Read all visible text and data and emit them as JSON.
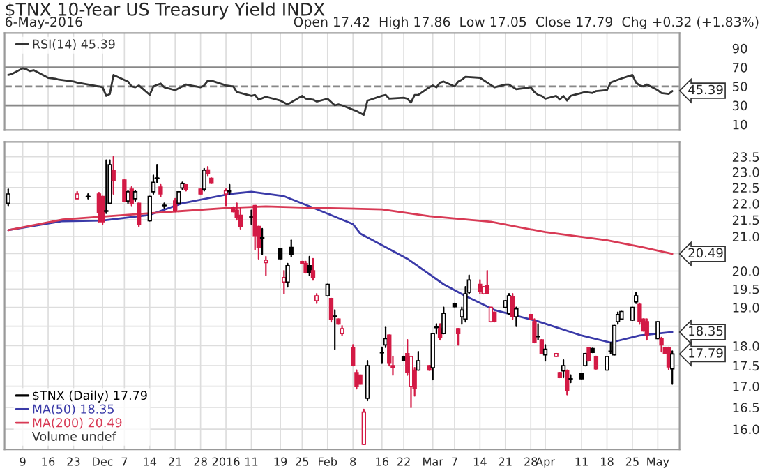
{
  "chart_data": [
    {
      "type": "line",
      "title": "$TNX 10-Year US Treasury Yield INDX",
      "subtitle": "6-May-2016",
      "annotations": [
        "Open 17.42  High 17.86  Low 17.05  Close 17.79  Chg +0.32 (+1.83%)",
        {
          "text": "45.39",
          "x": "2016-05-06",
          "y": 45.39
        }
      ],
      "series": [
        {
          "name": "RSI(14) 45.39",
          "color": "#333333",
          "x": [
            "2015-11-05",
            "2015-11-06",
            "2015-11-09",
            "2015-11-10",
            "2015-11-11",
            "2015-11-12",
            "2015-11-16",
            "2015-11-18",
            "2015-11-19",
            "2015-11-23",
            "2015-11-24",
            "2015-11-27",
            "2015-11-30",
            "2015-12-01",
            "2015-12-02",
            "2015-12-03",
            "2015-12-04",
            "2015-12-08",
            "2015-12-09",
            "2015-12-10",
            "2015-12-11",
            "2015-12-14",
            "2015-12-15",
            "2015-12-17",
            "2015-12-18",
            "2015-12-21",
            "2015-12-22",
            "2015-12-24",
            "2015-12-28",
            "2015-12-29",
            "2015-12-30",
            "2015-12-31",
            "2016-01-04",
            "2016-01-06",
            "2016-01-07",
            "2016-01-11",
            "2016-01-12",
            "2016-01-13",
            "2016-01-15",
            "2016-01-19",
            "2016-01-21",
            "2016-01-25",
            "2016-01-26",
            "2016-01-28",
            "2016-01-29",
            "2016-02-01",
            "2016-02-03",
            "2016-02-04",
            "2016-02-05",
            "2016-02-09",
            "2016-02-10",
            "2016-02-11",
            "2016-02-12",
            "2016-02-16",
            "2016-02-17",
            "2016-02-18",
            "2016-02-22",
            "2016-02-23",
            "2016-02-24",
            "2016-02-25",
            "2016-02-26",
            "2016-02-29",
            "2016-03-01",
            "2016-03-02",
            "2016-03-03",
            "2016-03-04",
            "2016-03-07",
            "2016-03-08",
            "2016-03-09",
            "2016-03-10",
            "2016-03-14",
            "2016-03-16",
            "2016-03-18",
            "2016-03-21",
            "2016-03-22",
            "2016-03-24",
            "2016-03-28",
            "2016-03-29",
            "2016-03-30",
            "2016-03-31",
            "2016-04-01",
            "2016-04-04",
            "2016-04-05",
            "2016-04-06",
            "2016-04-07",
            "2016-04-08",
            "2016-04-12",
            "2016-04-14",
            "2016-04-15",
            "2016-04-18",
            "2016-04-19",
            "2016-04-21",
            "2016-04-25",
            "2016-04-26",
            "2016-04-27",
            "2016-04-28",
            "2016-04-29",
            "2016-05-02",
            "2016-05-03",
            "2016-05-05",
            "2016-05-06"
          ],
          "values": [
            62,
            63,
            69,
            68,
            66,
            67,
            59,
            58,
            57,
            55,
            54,
            52,
            50,
            49,
            40,
            42,
            62,
            55,
            50,
            49,
            51,
            41,
            50,
            53,
            49,
            46,
            48,
            52,
            49,
            51,
            56,
            56,
            51,
            50,
            44,
            40,
            41,
            36,
            39,
            35,
            31,
            40,
            37,
            36,
            34,
            37,
            30,
            31,
            30,
            24,
            22,
            20,
            35,
            40,
            41,
            37,
            38,
            37,
            33,
            41,
            41,
            49,
            51,
            49,
            54,
            55,
            50,
            55,
            57,
            60,
            59,
            54,
            49,
            52,
            52,
            47,
            49,
            44,
            41,
            40,
            37,
            40,
            36,
            40,
            35,
            40,
            44,
            43,
            45,
            46,
            54,
            57,
            62,
            54,
            51,
            50,
            52,
            46,
            43,
            42,
            45
          ]
        }
      ],
      "ylim": [
        4,
        106
      ],
      "yticks": [
        10,
        30,
        50,
        70,
        90
      ],
      "xlim": [
        "2015-11-04",
        "2016-05-08"
      ],
      "xticks": [
        {
          "value": "2015-11-09",
          "label": null
        },
        {
          "value": "2015-11-16",
          "label": null
        },
        {
          "value": "2015-11-23",
          "label": null
        },
        {
          "value": "2015-12-01",
          "label": null
        },
        {
          "value": "2015-12-07",
          "label": null
        },
        {
          "value": "2015-12-14",
          "label": null
        },
        {
          "value": "2015-12-21",
          "label": null
        },
        {
          "value": "2015-12-28",
          "label": null
        },
        {
          "value": "2016-01-04",
          "label": null
        },
        {
          "value": "2016-01-11",
          "label": null
        },
        {
          "value": "2016-01-19",
          "label": null
        },
        {
          "value": "2016-01-25",
          "label": null
        },
        {
          "value": "2016-02-01",
          "label": null
        },
        {
          "value": "2016-02-08",
          "label": null
        },
        {
          "value": "2016-02-16",
          "label": null
        },
        {
          "value": "2016-02-22",
          "label": null
        },
        {
          "value": "2016-03-01",
          "label": null
        },
        {
          "value": "2016-03-07",
          "label": null
        },
        {
          "value": "2016-03-14",
          "label": null
        },
        {
          "value": "2016-03-21",
          "label": null
        },
        {
          "value": "2016-03-28",
          "label": null
        },
        {
          "value": "2016-04-01",
          "label": null
        },
        {
          "value": "2016-04-11",
          "label": null
        },
        {
          "value": "2016-04-18",
          "label": null
        },
        {
          "value": "2016-04-25",
          "label": null
        },
        {
          "value": "2016-05-02",
          "label": null
        }
      ],
      "tick_labels": "y",
      "ref_lines": [
        {
          "axis": "y",
          "value": 70,
          "color": "#888888",
          "line_style": "solid"
        },
        {
          "axis": "y",
          "value": 30,
          "color": "#888888",
          "line_style": "solid"
        },
        {
          "axis": "y",
          "value": 50,
          "color": "#888888",
          "line_style": "dashed"
        }
      ],
      "grid": "x",
      "legend": "top left"
    },
    {
      "type": "candlestick",
      "annotations": [
        "Volume undef",
        {
          "text": "20.49",
          "x": "2016-05-06",
          "y": 20.49
        },
        {
          "text": "18.35",
          "x": "2016-05-06",
          "y": 18.35
        },
        {
          "text": "17.79",
          "x": "2016-05-06",
          "y": 17.79
        }
      ],
      "series": [
        {
          "type": "candlestick",
          "name": "$TNX (Daily) 17.79",
          "x": [
            "2015-11-05",
            "2015-11-24",
            "2015-11-27",
            "2015-11-30",
            "2015-12-01",
            "2015-12-02",
            "2015-12-03",
            "2015-12-04",
            "2015-12-07",
            "2015-12-08",
            "2015-12-09",
            "2015-12-10",
            "2015-12-11",
            "2015-12-14",
            "2015-12-15",
            "2015-12-16",
            "2015-12-17",
            "2015-12-18",
            "2015-12-21",
            "2015-12-22",
            "2015-12-23",
            "2015-12-24",
            "2015-12-28",
            "2015-12-29",
            "2015-12-30",
            "2015-12-31",
            "2016-01-04",
            "2016-01-05",
            "2016-01-06",
            "2016-01-07",
            "2016-01-08",
            "2016-01-11",
            "2016-01-12",
            "2016-01-13",
            "2016-01-14",
            "2016-01-15",
            "2016-01-19",
            "2016-01-20",
            "2016-01-21",
            "2016-01-22",
            "2016-01-25",
            "2016-01-26",
            "2016-01-27",
            "2016-01-28",
            "2016-01-29",
            "2016-02-01",
            "2016-02-02",
            "2016-02-03",
            "2016-02-04",
            "2016-02-05",
            "2016-02-08",
            "2016-02-09",
            "2016-02-10",
            "2016-02-11",
            "2016-02-12",
            "2016-02-16",
            "2016-02-17",
            "2016-02-18",
            "2016-02-19",
            "2016-02-22",
            "2016-02-23",
            "2016-02-24",
            "2016-02-25",
            "2016-02-26",
            "2016-02-29",
            "2016-03-01",
            "2016-03-02",
            "2016-03-03",
            "2016-03-04",
            "2016-03-07",
            "2016-03-08",
            "2016-03-09",
            "2016-03-10",
            "2016-03-11",
            "2016-03-14",
            "2016-03-15",
            "2016-03-16",
            "2016-03-17",
            "2016-03-18",
            "2016-03-21",
            "2016-03-22",
            "2016-03-23",
            "2016-03-24",
            "2016-03-28",
            "2016-03-29",
            "2016-03-30",
            "2016-03-31",
            "2016-04-01",
            "2016-04-04",
            "2016-04-05",
            "2016-04-06",
            "2016-04-07",
            "2016-04-08",
            "2016-04-11",
            "2016-04-12",
            "2016-04-13",
            "2016-04-14",
            "2016-04-15",
            "2016-04-18",
            "2016-04-19",
            "2016-04-20",
            "2016-04-21",
            "2016-04-22",
            "2016-04-25",
            "2016-04-26",
            "2016-04-27",
            "2016-04-28",
            "2016-04-29",
            "2016-05-02",
            "2016-05-03",
            "2016-05-04",
            "2016-05-05",
            "2016-05-06"
          ],
          "ohlc": [
            [
              22.01,
              22.45,
              21.94,
              22.3
            ],
            [
              22.15,
              22.37,
              22.15,
              22.3
            ],
            [
              22.22,
              22.3,
              22.15,
              22.22
            ],
            [
              22.3,
              22.34,
              21.44,
              21.73
            ],
            [
              22.22,
              22.22,
              21.37,
              21.44
            ],
            [
              21.76,
              23.39,
              21.7,
              21.78
            ],
            [
              22.01,
              23.39,
              22.01,
              23.24
            ],
            [
              23.04,
              23.5,
              22.3,
              22.74
            ],
            [
              22.74,
              22.74,
              22.08,
              22.08
            ],
            [
              22.08,
              22.4,
              22.01,
              22.37
            ],
            [
              22.45,
              22.52,
              21.94,
              22.01
            ],
            [
              22.15,
              22.4,
              22.08,
              22.37
            ],
            [
              22.01,
              22.01,
              21.3,
              21.37
            ],
            [
              21.47,
              22.22,
              21.47,
              22.22
            ],
            [
              22.37,
              22.89,
              22.3,
              22.67
            ],
            [
              22.8,
              23.24,
              22.67,
              22.8
            ],
            [
              22.52,
              22.59,
              22.22,
              22.3
            ],
            [
              21.94,
              22.01,
              21.86,
              21.94
            ],
            [
              22.08,
              22.15,
              21.75,
              21.79
            ],
            [
              22.01,
              22.37,
              22.01,
              22.37
            ],
            [
              22.49,
              22.67,
              22.45,
              22.63
            ],
            [
              22.59,
              22.59,
              22.4,
              22.45
            ],
            [
              22.45,
              22.45,
              22.3,
              22.3
            ],
            [
              22.45,
              23.11,
              22.4,
              23.06
            ],
            [
              23.07,
              23.17,
              22.89,
              22.96
            ],
            [
              22.8,
              22.8,
              22.64,
              22.64
            ],
            [
              22.3,
              22.45,
              21.94,
              22.4
            ],
            [
              22.37,
              22.59,
              22.3,
              22.4
            ],
            [
              21.89,
              21.89,
              21.75,
              21.75
            ],
            [
              21.79,
              22.01,
              21.5,
              21.58
            ],
            [
              21.64,
              21.86,
              21.23,
              21.3
            ],
            [
              21.58,
              21.79,
              21.37,
              21.6
            ],
            [
              21.94,
              21.94,
              20.61,
              21.03
            ],
            [
              21.3,
              21.3,
              20.35,
              20.68
            ],
            [
              20.95,
              21.23,
              20.48,
              20.97
            ],
            [
              20.24,
              20.41,
              19.88,
              20.31
            ],
            [
              20.64,
              20.64,
              20.35,
              20.35
            ],
            [
              19.69,
              20.01,
              19.37,
              19.82
            ],
            [
              19.69,
              20.21,
              19.56,
              20.15
            ],
            [
              20.68,
              20.89,
              20.41,
              20.48
            ],
            [
              20.27,
              20.27,
              20.21,
              20.21
            ],
            [
              20.21,
              20.27,
              19.95,
              19.95
            ],
            [
              20.15,
              20.41,
              19.88,
              19.95
            ],
            [
              20.01,
              20.35,
              19.75,
              19.82
            ],
            [
              19.18,
              19.37,
              19.11,
              19.31
            ],
            [
              19.31,
              19.63,
              19.31,
              19.63
            ],
            [
              19.24,
              19.24,
              18.62,
              18.69
            ],
            [
              18.75,
              18.93,
              17.91,
              18.77
            ],
            [
              18.69,
              18.69,
              18.56,
              18.56
            ],
            [
              18.31,
              18.51,
              18.27,
              18.44
            ],
            [
              17.96,
              18.02,
              17.5,
              17.5
            ],
            [
              17.33,
              17.39,
              16.94,
              16.99
            ],
            [
              17.27,
              17.27,
              17.05,
              17.05
            ],
            [
              15.66,
              16.45,
              15.66,
              16.39
            ],
            [
              16.71,
              17.62,
              16.66,
              17.5
            ],
            [
              17.83,
              17.96,
              17.56,
              17.82
            ],
            [
              18.02,
              18.47,
              17.96,
              18.18
            ],
            [
              18.27,
              18.27,
              17.5,
              17.56
            ],
            [
              17.5,
              17.73,
              17.27,
              17.45
            ],
            [
              17.73,
              17.73,
              17.64,
              17.64
            ],
            [
              17.8,
              18.15,
              17.27,
              17.33
            ],
            [
              16.99,
              17.73,
              16.5,
              17.73
            ],
            [
              17.39,
              17.45,
              16.77,
              16.94
            ],
            [
              17.39,
              17.85,
              17.39,
              17.62
            ],
            [
              17.5,
              17.5,
              17.39,
              17.39
            ],
            [
              17.45,
              18.31,
              17.16,
              18.31
            ],
            [
              18.47,
              18.56,
              18.31,
              18.47
            ],
            [
              18.44,
              18.56,
              18.15,
              18.21
            ],
            [
              18.31,
              19.0,
              18.31,
              18.84
            ],
            [
              19.11,
              19.11,
              19.02,
              19.02
            ],
            [
              18.44,
              18.44,
              18.02,
              18.31
            ],
            [
              18.75,
              19.0,
              18.56,
              18.93
            ],
            [
              18.69,
              19.56,
              18.62,
              19.37
            ],
            [
              19.41,
              19.88,
              19.37,
              19.75
            ],
            [
              19.63,
              19.75,
              19.37,
              19.43
            ],
            [
              19.37,
              19.56,
              19.37,
              19.56
            ],
            [
              19.6,
              20.01,
              19.37,
              19.37
            ],
            [
              18.62,
              19.0,
              18.62,
              19.0
            ],
            [
              18.87,
              18.87,
              18.62,
              18.62
            ],
            [
              19.0,
              19.18,
              19.0,
              19.18
            ],
            [
              18.84,
              19.37,
              18.81,
              19.31
            ],
            [
              19.28,
              19.37,
              18.69,
              18.75
            ],
            [
              18.75,
              19.0,
              18.5,
              18.96
            ],
            [
              18.81,
              18.81,
              18.69,
              18.69
            ],
            [
              18.62,
              18.69,
              18.08,
              18.08
            ],
            [
              18.23,
              18.56,
              18.15,
              18.24
            ],
            [
              18.15,
              18.15,
              17.8,
              17.8
            ],
            [
              17.77,
              18.02,
              17.62,
              17.91
            ],
            [
              17.73,
              17.8,
              17.73,
              17.8
            ],
            [
              17.33,
              17.33,
              17.21,
              17.21
            ],
            [
              17.37,
              17.64,
              17.21,
              17.5
            ],
            [
              17.37,
              17.39,
              16.8,
              16.89
            ],
            [
              17.17,
              17.27,
              17.09,
              17.18
            ],
            [
              17.3,
              17.3,
              17.18,
              17.18
            ],
            [
              17.5,
              17.8,
              17.5,
              17.8
            ],
            [
              17.94,
              17.94,
              17.62,
              17.62
            ],
            [
              17.93,
              17.93,
              17.83,
              17.83
            ],
            [
              17.73,
              17.73,
              17.42,
              17.42
            ],
            [
              17.39,
              17.73,
              17.39,
              17.73
            ],
            [
              17.85,
              18.08,
              17.8,
              17.86
            ],
            [
              17.77,
              18.52,
              17.77,
              18.52
            ],
            [
              18.62,
              18.87,
              18.56,
              18.81
            ],
            [
              18.69,
              18.89,
              18.69,
              18.89
            ],
            [
              18.66,
              19.0,
              18.66,
              19.0
            ],
            [
              19.15,
              19.4,
              19.11,
              19.31
            ],
            [
              19.08,
              19.11,
              18.56,
              18.62
            ],
            [
              18.69,
              18.69,
              18.38,
              18.38
            ],
            [
              18.62,
              18.69,
              18.15,
              18.27
            ],
            [
              18.18,
              18.62,
              18.18,
              18.62
            ],
            [
              18.18,
              18.21,
              17.85,
              18.02
            ],
            [
              17.96,
              17.96,
              17.8,
              17.8
            ],
            [
              17.94,
              17.96,
              17.41,
              17.47
            ],
            [
              17.42,
              17.86,
              17.05,
              17.79
            ]
          ],
          "colors": [
            "#000000",
            "#d31a45",
            "#000000",
            "#d31a45",
            "#d31a45",
            "#000000",
            "#000000",
            "#d31a45",
            "#d31a45",
            "#000000",
            "#d31a45",
            "#000000",
            "#d31a45",
            "#000000",
            "#000000",
            "#000000",
            "#d31a45",
            "#000000",
            "#d31a45",
            "#000000",
            "#000000",
            "#d31a45",
            "#d31a45",
            "#000000",
            "#d31a45",
            "#d31a45",
            "#d31a45",
            "#000000",
            "#d31a45",
            "#d31a45",
            "#d31a45",
            "#000000",
            "#d31a45",
            "#d31a45",
            "#000000",
            "#d31a45",
            "#000000",
            "#d31a45",
            "#000000",
            "#000000",
            "#d31a45",
            "#d31a45",
            "#000000",
            "#d31a45",
            "#d31a45",
            "#000000",
            "#d31a45",
            "#000000",
            "#d31a45",
            "#d31a45",
            "#d31a45",
            "#d31a45",
            "#d31a45",
            "#d31a45",
            "#000000",
            "#000000",
            "#000000",
            "#d31a45",
            "#d31a45",
            "#000000",
            "#d31a45",
            "#d31a45",
            "#d31a45",
            "#000000",
            "#d31a45",
            "#000000",
            "#000000",
            "#d31a45",
            "#000000",
            "#000000",
            "#d31a45",
            "#000000",
            "#000000",
            "#000000",
            "#d31a45",
            "#d31a45",
            "#d31a45",
            "#d31a45",
            "#d31a45",
            "#000000",
            "#000000",
            "#d31a45",
            "#000000",
            "#d31a45",
            "#d31a45",
            "#000000",
            "#d31a45",
            "#000000",
            "#d31a45",
            "#d31a45",
            "#000000",
            "#d31a45",
            "#000000",
            "#000000",
            "#000000",
            "#d31a45",
            "#000000",
            "#d31a45",
            "#000000",
            "#000000",
            "#000000",
            "#000000",
            "#000000",
            "#000000",
            "#000000",
            "#d31a45",
            "#d31a45",
            "#d31a45",
            "#000000",
            "#d31a45",
            "#d31a45",
            "#d31a45",
            "#000000"
          ]
        },
        {
          "type": "line",
          "name": "MA(50) 18.35",
          "color": "#3a3aa8",
          "x": [
            "2015-11-05",
            "2015-11-20",
            "2015-12-01",
            "2015-12-14",
            "2015-12-23",
            "2016-01-05",
            "2016-01-11",
            "2016-01-20",
            "2016-01-28",
            "2016-02-08",
            "2016-02-10",
            "2016-02-23",
            "2016-03-04",
            "2016-03-10",
            "2016-03-18",
            "2016-03-30",
            "2016-04-11",
            "2016-04-19",
            "2016-04-27",
            "2016-05-06"
          ],
          "values": [
            21.19,
            21.46,
            21.48,
            21.65,
            22.01,
            22.3,
            22.37,
            22.23,
            21.87,
            21.37,
            21.09,
            20.35,
            19.63,
            19.31,
            18.93,
            18.63,
            18.26,
            18.08,
            18.26,
            18.35
          ]
        },
        {
          "type": "line",
          "name": "MA(200) 20.49",
          "color": "#d83a55",
          "x": [
            "2015-11-05",
            "2015-11-20",
            "2015-12-14",
            "2016-01-05",
            "2016-01-15",
            "2016-01-28",
            "2016-02-16",
            "2016-02-29",
            "2016-03-17",
            "2016-04-01",
            "2016-04-18",
            "2016-04-28",
            "2016-05-06"
          ],
          "values": [
            21.19,
            21.51,
            21.7,
            21.87,
            21.91,
            21.87,
            21.82,
            21.61,
            21.44,
            21.13,
            20.89,
            20.68,
            20.49
          ]
        }
      ],
      "log": true,
      "ylim": [
        15.55,
        24.0
      ],
      "xlim": [
        "2015-11-04",
        "2016-05-08"
      ],
      "yticks": [
        {
          "value": 16,
          "label": "16.0"
        },
        16.5,
        {
          "value": 17,
          "label": "17.0"
        },
        17.5,
        {
          "value": 18,
          "label": "18.0"
        },
        {
          "value": 18.5,
          "label": null
        },
        {
          "value": 19,
          "label": "19.0"
        },
        19.5,
        {
          "value": 20,
          "label": "20.0"
        },
        {
          "value": 20.5,
          "label": null
        },
        {
          "value": 21,
          "label": "21.0"
        },
        21.5,
        {
          "value": 22,
          "label": "22.0"
        },
        22.5,
        {
          "value": 23,
          "label": "23.0"
        },
        23.5
      ],
      "xticks": [
        {
          "value": "2015-11-09",
          "label": "9"
        },
        {
          "value": "2015-11-16",
          "label": "16"
        },
        {
          "value": "2015-11-23",
          "label": "23"
        },
        {
          "value": "2015-12-01",
          "label": "Dec"
        },
        {
          "value": "2015-12-07",
          "label": "7"
        },
        {
          "value": "2015-12-14",
          "label": "14"
        },
        {
          "value": "2015-12-21",
          "label": "21"
        },
        {
          "value": "2015-12-28",
          "label": "28"
        },
        {
          "value": "2016-01-04",
          "label": "2016"
        },
        {
          "value": "2016-01-11",
          "label": "11"
        },
        {
          "value": "2016-01-19",
          "label": "19"
        },
        {
          "value": "2016-01-25",
          "label": "25"
        },
        {
          "value": "2016-02-01",
          "label": "Feb"
        },
        {
          "value": "2016-02-08",
          "label": "8"
        },
        {
          "value": "2016-02-16",
          "label": "16"
        },
        {
          "value": "2016-02-22",
          "label": "22"
        },
        {
          "value": "2016-03-01",
          "label": "Mar"
        },
        {
          "value": "2016-03-07",
          "label": "7"
        },
        {
          "value": "2016-03-14",
          "label": "14"
        },
        {
          "value": "2016-03-21",
          "label": "21"
        },
        {
          "value": "2016-03-28",
          "label": "28"
        },
        {
          "value": "2016-04-01",
          "label": "Apr"
        },
        {
          "value": "2016-04-11",
          "label": "11"
        },
        {
          "value": "2016-04-18",
          "label": "18"
        },
        {
          "value": "2016-04-25",
          "label": "25"
        },
        {
          "value": "2016-05-02",
          "label": "May"
        }
      ],
      "grid": true,
      "legend": "bottom left"
    }
  ]
}
